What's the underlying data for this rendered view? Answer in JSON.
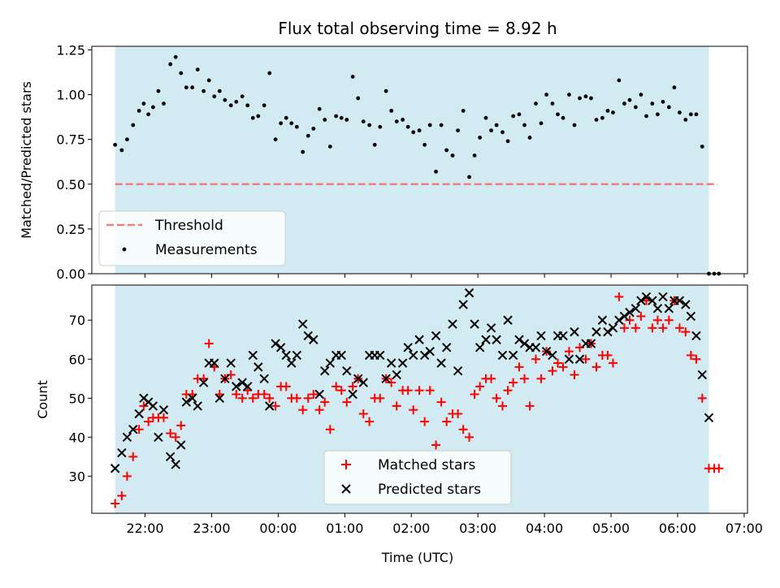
{
  "chart_data": {
    "title": "Flux total observing time = 8.92 h",
    "xlabel": "Time (UTC)",
    "x_tick_labels": [
      "22:00",
      "23:00",
      "00:00",
      "01:00",
      "02:00",
      "03:00",
      "04:00",
      "05:00",
      "06:00",
      "07:00"
    ],
    "x_tick_values_h": [
      22,
      23,
      24,
      25,
      26,
      27,
      28,
      29,
      30,
      31
    ],
    "xlim_h": [
      21.2,
      31.05
    ],
    "observing_window_h": [
      21.55,
      30.47
    ],
    "colors": {
      "window": "#add8e6",
      "threshold": "#f08080",
      "matched": "#ff0000",
      "predicted": "#000000",
      "measurements": "#000000"
    },
    "panels": [
      {
        "type": "scatter",
        "ylabel": "Matched/Predicted stars",
        "ylim": [
          0,
          1.27
        ],
        "y_tick_labels": [
          "0.00",
          "0.25",
          "0.50",
          "0.75",
          "1.00",
          "1.25"
        ],
        "y_tick_values": [
          0,
          0.25,
          0.5,
          0.75,
          1.0,
          1.25
        ],
        "legend_position": "lower-left",
        "threshold": {
          "name": "Threshold",
          "value": 0.5,
          "x_start_h": 21.55,
          "x_end_h": 30.6
        },
        "measurements": {
          "name": "Measurements",
          "x": [
            21.55,
            21.65,
            21.73,
            21.82,
            21.91,
            21.98,
            22.05,
            22.12,
            22.2,
            22.28,
            22.38,
            22.46,
            22.54,
            22.62,
            22.71,
            22.79,
            22.88,
            22.96,
            23.04,
            23.12,
            23.2,
            23.29,
            23.37,
            23.46,
            23.54,
            23.62,
            23.7,
            23.79,
            23.87,
            23.96,
            24.04,
            24.12,
            24.2,
            24.28,
            24.37,
            24.45,
            24.53,
            24.62,
            24.7,
            24.78,
            24.87,
            24.95,
            25.03,
            25.12,
            25.2,
            25.28,
            25.37,
            25.45,
            25.53,
            25.62,
            25.7,
            25.78,
            25.87,
            25.95,
            26.03,
            26.12,
            26.2,
            26.28,
            26.37,
            26.45,
            26.53,
            26.62,
            26.7,
            26.78,
            26.87,
            26.95,
            27.03,
            27.12,
            27.2,
            27.28,
            27.37,
            27.45,
            27.53,
            27.62,
            27.7,
            27.78,
            27.87,
            27.95,
            28.03,
            28.12,
            28.2,
            28.28,
            28.37,
            28.45,
            28.53,
            28.62,
            28.7,
            28.78,
            28.87,
            28.95,
            29.03,
            29.12,
            29.2,
            29.28,
            29.37,
            29.45,
            29.53,
            29.62,
            29.7,
            29.78,
            29.87,
            29.95,
            30.03,
            30.12,
            30.2,
            30.28,
            30.37,
            30.47,
            30.55,
            30.62
          ],
          "y": [
            0.72,
            0.69,
            0.75,
            0.83,
            0.91,
            0.95,
            0.89,
            0.93,
            1.02,
            0.95,
            1.17,
            1.21,
            1.12,
            1.04,
            1.04,
            1.14,
            1.02,
            1.08,
            0.99,
            1.02,
            0.97,
            0.94,
            0.96,
            0.99,
            0.94,
            0.87,
            0.88,
            0.94,
            1.12,
            0.75,
            0.84,
            0.87,
            0.84,
            0.82,
            0.68,
            0.77,
            0.81,
            0.92,
            0.86,
            0.71,
            0.88,
            0.87,
            0.86,
            1.1,
            0.98,
            0.85,
            0.83,
            0.72,
            0.82,
            1.02,
            0.91,
            0.85,
            0.86,
            0.82,
            0.79,
            0.8,
            0.72,
            0.83,
            0.57,
            0.83,
            0.69,
            0.66,
            0.8,
            0.91,
            0.54,
            0.66,
            0.76,
            0.87,
            0.8,
            0.83,
            0.79,
            0.74,
            0.88,
            0.89,
            0.83,
            0.76,
            0.95,
            0.84,
            1.0,
            0.95,
            0.89,
            0.87,
            1.0,
            0.83,
            0.98,
            0.99,
            0.98,
            0.86,
            0.87,
            0.91,
            0.9,
            1.08,
            0.95,
            0.97,
            0.93,
            1.0,
            0.88,
            0.95,
            0.89,
            0.96,
            0.93,
            1.04,
            0.9,
            0.86,
            0.89,
            0.89,
            0.71,
            0.0,
            0.0,
            0.0
          ]
        }
      },
      {
        "type": "scatter",
        "ylabel": "Count",
        "ylim": [
          20.5,
          79
        ],
        "y_tick_labels": [
          "30",
          "40",
          "50",
          "60",
          "70"
        ],
        "y_tick_values": [
          30,
          40,
          50,
          60,
          70
        ],
        "legend_position": "lower-center",
        "series": [
          {
            "name": "Matched stars",
            "marker": "plus",
            "x": [
              21.55,
              21.65,
              21.73,
              21.82,
              21.91,
              21.98,
              22.05,
              22.12,
              22.2,
              22.28,
              22.38,
              22.46,
              22.54,
              22.62,
              22.71,
              22.79,
              22.88,
              22.96,
              23.04,
              23.12,
              23.2,
              23.29,
              23.37,
              23.46,
              23.54,
              23.62,
              23.7,
              23.79,
              23.87,
              23.96,
              24.04,
              24.12,
              24.2,
              24.28,
              24.37,
              24.45,
              24.53,
              24.62,
              24.7,
              24.78,
              24.87,
              24.95,
              25.03,
              25.12,
              25.2,
              25.28,
              25.37,
              25.45,
              25.53,
              25.62,
              25.7,
              25.78,
              25.87,
              25.95,
              26.03,
              26.12,
              26.2,
              26.28,
              26.37,
              26.45,
              26.53,
              26.62,
              26.7,
              26.78,
              26.87,
              26.95,
              27.03,
              27.12,
              27.2,
              27.28,
              27.37,
              27.45,
              27.53,
              27.62,
              27.7,
              27.78,
              27.87,
              27.95,
              28.03,
              28.12,
              28.2,
              28.28,
              28.37,
              28.45,
              28.53,
              28.62,
              28.7,
              28.78,
              28.87,
              28.95,
              29.03,
              29.12,
              29.2,
              29.28,
              29.37,
              29.45,
              29.53,
              29.62,
              29.7,
              29.78,
              29.87,
              29.95,
              30.03,
              30.12,
              30.2,
              30.28,
              30.37,
              30.47,
              30.55,
              30.62
            ],
            "y": [
              23,
              25,
              30,
              35,
              42,
              48,
              44,
              45,
              45,
              45,
              41,
              40,
              43,
              51,
              51,
              55,
              55,
              64,
              58,
              51,
              55,
              56,
              51,
              50,
              52,
              50,
              51,
              51,
              50,
              48,
              53,
              53,
              50,
              50,
              47,
              50,
              51,
              47,
              49,
              42,
              53,
              52,
              49,
              53,
              55,
              46,
              44,
              50,
              50,
              55,
              54,
              48,
              52,
              52,
              47,
              52,
              44,
              52,
              38,
              49,
              44,
              46,
              46,
              42,
              40,
              51,
              53,
              55,
              55,
              50,
              48,
              52,
              54,
              58,
              55,
              48,
              60,
              55,
              62,
              57,
              59,
              58,
              62,
              56,
              63,
              60,
              64,
              58,
              61,
              61,
              59,
              76,
              68,
              70,
              68,
              71,
              75,
              68,
              70,
              68,
              70,
              75,
              68,
              67,
              61,
              60,
              50,
              32,
              32,
              32
            ]
          },
          {
            "name": "Predicted stars",
            "marker": "x",
            "x": [
              21.55,
              21.65,
              21.73,
              21.82,
              21.91,
              21.98,
              22.05,
              22.12,
              22.2,
              22.28,
              22.38,
              22.46,
              22.54,
              22.62,
              22.71,
              22.79,
              22.88,
              22.96,
              23.04,
              23.12,
              23.2,
              23.29,
              23.37,
              23.46,
              23.54,
              23.62,
              23.7,
              23.79,
              23.87,
              23.96,
              24.04,
              24.12,
              24.2,
              24.28,
              24.37,
              24.45,
              24.53,
              24.62,
              24.7,
              24.78,
              24.87,
              24.95,
              25.03,
              25.12,
              25.2,
              25.28,
              25.37,
              25.45,
              25.53,
              25.62,
              25.7,
              25.78,
              25.87,
              25.95,
              26.03,
              26.12,
              26.2,
              26.28,
              26.37,
              26.45,
              26.53,
              26.62,
              26.7,
              26.78,
              26.87,
              26.95,
              27.03,
              27.12,
              27.2,
              27.28,
              27.37,
              27.45,
              27.53,
              27.62,
              27.7,
              27.78,
              27.87,
              27.95,
              28.03,
              28.12,
              28.2,
              28.28,
              28.37,
              28.45,
              28.53,
              28.62,
              28.7,
              28.78,
              28.87,
              28.95,
              29.03,
              29.12,
              29.2,
              29.28,
              29.37,
              29.45,
              29.53,
              29.62,
              29.7,
              29.78,
              29.87,
              29.95,
              30.03,
              30.12,
              30.2,
              30.28,
              30.37,
              30.47
            ],
            "y": [
              32,
              36,
              40,
              42,
              46,
              50,
              49,
              48,
              40,
              47,
              35,
              33,
              38,
              49,
              50,
              48,
              54,
              59,
              59,
              50,
              55,
              59,
              53,
              54,
              53,
              61,
              58,
              55,
              48,
              64,
              63,
              61,
              59,
              61,
              69,
              66,
              65,
              51,
              57,
              59,
              61,
              61,
              57,
              51,
              55,
              54,
              61,
              61,
              61,
              55,
              59,
              56,
              59,
              63,
              61,
              65,
              61,
              62,
              66,
              59,
              63,
              69,
              57,
              74,
              77,
              69,
              63,
              65,
              68,
              65,
              61,
              70,
              61,
              65,
              64,
              63,
              63,
              66,
              62,
              61,
              66,
              66,
              60,
              67,
              60,
              64,
              64,
              67,
              70,
              67,
              68,
              70,
              71,
              72,
              73,
              75,
              76,
              75,
              73,
              76,
              73,
              75,
              75,
              74,
              71,
              66,
              56,
              45
            ]
          }
        ]
      }
    ]
  }
}
